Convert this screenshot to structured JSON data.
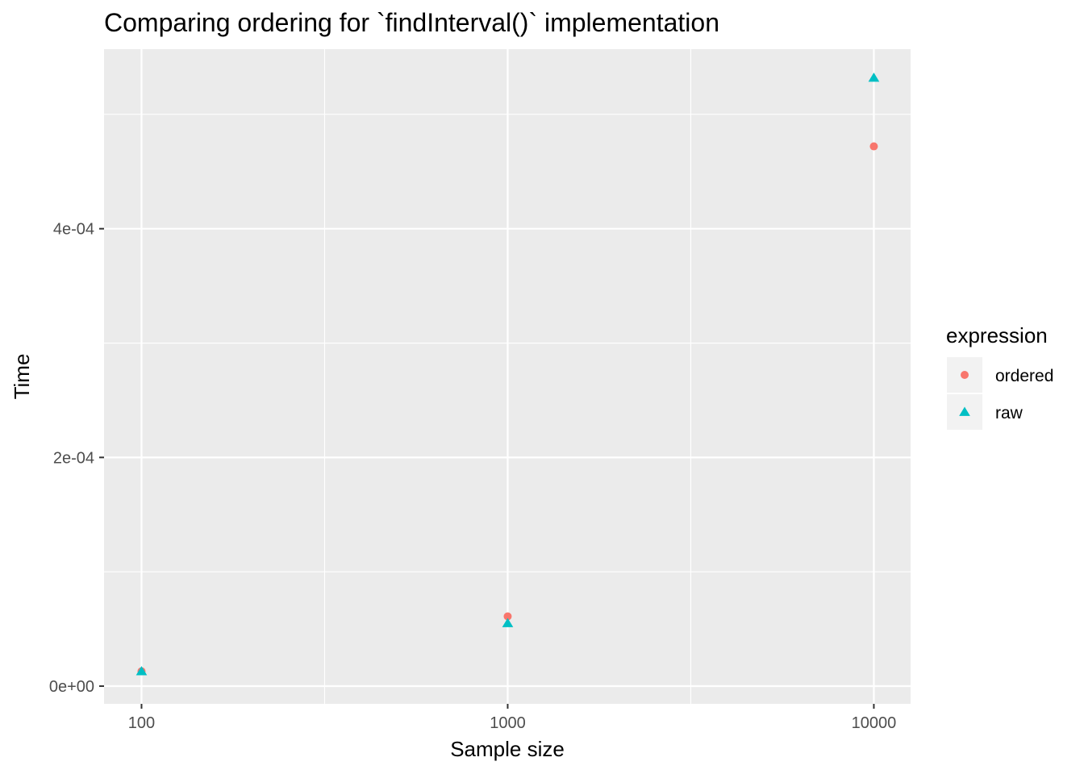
{
  "chart_data": {
    "type": "scatter",
    "title": "Comparing ordering for `findInterval()` implementation",
    "xlabel": "Sample size",
    "ylabel": "Time",
    "x_scale": "log10",
    "xlim": [
      79,
      12600
    ],
    "ylim": [
      -1.55e-05,
      0.000557
    ],
    "x_ticks": [
      100,
      1000,
      10000
    ],
    "x_tick_labels": [
      "100",
      "1000",
      "10000"
    ],
    "y_ticks": [
      0,
      0.0002,
      0.0004
    ],
    "y_tick_labels": [
      "0e+00",
      "2e-04",
      "4e-04"
    ],
    "grid": true,
    "legend": {
      "title": "expression",
      "position": "right"
    },
    "series": [
      {
        "name": "ordered",
        "shape": "circle",
        "color": "#F8766D",
        "x": [
          100,
          1000,
          10000
        ],
        "y": [
          1.3e-05,
          6.1e-05,
          0.000472
        ]
      },
      {
        "name": "raw",
        "shape": "triangle",
        "color": "#00BFC4",
        "x": [
          100,
          1000,
          10000
        ],
        "y": [
          1.3e-05,
          5.5e-05,
          0.000532
        ]
      }
    ]
  }
}
